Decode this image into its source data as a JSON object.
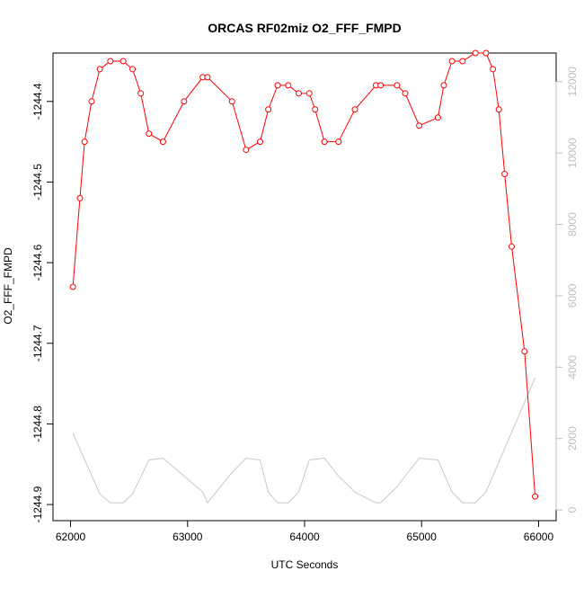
{
  "chart_data": {
    "type": "line",
    "title": "ORCAS RF02miz O2_FFF_FMPD",
    "xlabel": "UTC Seconds",
    "ylabel": "O2_FFF_FMPD",
    "xlim": [
      61850,
      66150
    ],
    "ylim": [
      -1244.92,
      -1244.34
    ],
    "y2lim": [
      -300,
      12800
    ],
    "x_ticks": [
      62000,
      63000,
      64000,
      65000,
      66000
    ],
    "x_tick_labels": [
      "62000",
      "63000",
      "64000",
      "65000",
      "66000"
    ],
    "y_ticks": [
      -1244.9,
      -1244.8,
      -1244.7,
      -1244.6,
      -1244.5,
      -1244.4
    ],
    "y_tick_labels": [
      "-1244.9",
      "-1244.8",
      "-1244.7",
      "-1244.6",
      "-1244.5",
      "-1244.4"
    ],
    "y2_ticks": [
      0,
      2000,
      4000,
      6000,
      8000,
      10000,
      12000
    ],
    "y2_tick_labels": [
      "0",
      "2000",
      "4000",
      "6000",
      "8000",
      "10000",
      "12000"
    ],
    "grid": false,
    "colors": {
      "primary": "#ff0000",
      "secondary": "#c8c8c8",
      "axis": "#000000",
      "axis2": "#bebebe"
    },
    "series": [
      {
        "axis": "left",
        "style": "line+points",
        "x": [
          62020,
          62080,
          62120,
          62180,
          62250,
          62340,
          62450,
          62530,
          62600,
          62670,
          62790,
          62970,
          63130,
          63170,
          63380,
          63500,
          63620,
          63690,
          63770,
          63860,
          63950,
          64040,
          64090,
          64170,
          64290,
          64430,
          64610,
          64650,
          64790,
          64860,
          64980,
          65140,
          65190,
          65260,
          65350,
          65460,
          65550,
          65610,
          65660,
          65710,
          65770,
          65880,
          65970
        ],
        "y": [
          -1244.63,
          -1244.52,
          -1244.45,
          -1244.4,
          -1244.36,
          -1244.35,
          -1244.35,
          -1244.36,
          -1244.39,
          -1244.44,
          -1244.45,
          -1244.4,
          -1244.37,
          -1244.37,
          -1244.4,
          -1244.46,
          -1244.45,
          -1244.41,
          -1244.38,
          -1244.38,
          -1244.39,
          -1244.39,
          -1244.41,
          -1244.45,
          -1244.45,
          -1244.41,
          -1244.38,
          -1244.38,
          -1244.38,
          -1244.39,
          -1244.43,
          -1244.42,
          -1244.38,
          -1244.35,
          -1244.35,
          -1244.34,
          -1244.34,
          -1244.36,
          -1244.41,
          -1244.49,
          -1244.58,
          -1244.71,
          -1244.89
        ]
      },
      {
        "axis": "right",
        "style": "line",
        "x": [
          62020,
          62250,
          62340,
          62450,
          62530,
          62670,
          62790,
          62970,
          63130,
          63170,
          63380,
          63500,
          63620,
          63690,
          63770,
          63860,
          63950,
          64040,
          64170,
          64290,
          64430,
          64610,
          64650,
          64790,
          64860,
          64980,
          65140,
          65260,
          65350,
          65460,
          65550,
          65970
        ],
        "y": [
          2150,
          450,
          200,
          200,
          450,
          1400,
          1450,
          950,
          500,
          200,
          1050,
          1450,
          1400,
          500,
          200,
          200,
          500,
          1400,
          1450,
          950,
          500,
          200,
          200,
          650,
          950,
          1450,
          1400,
          500,
          200,
          200,
          500,
          3700
        ]
      }
    ]
  }
}
